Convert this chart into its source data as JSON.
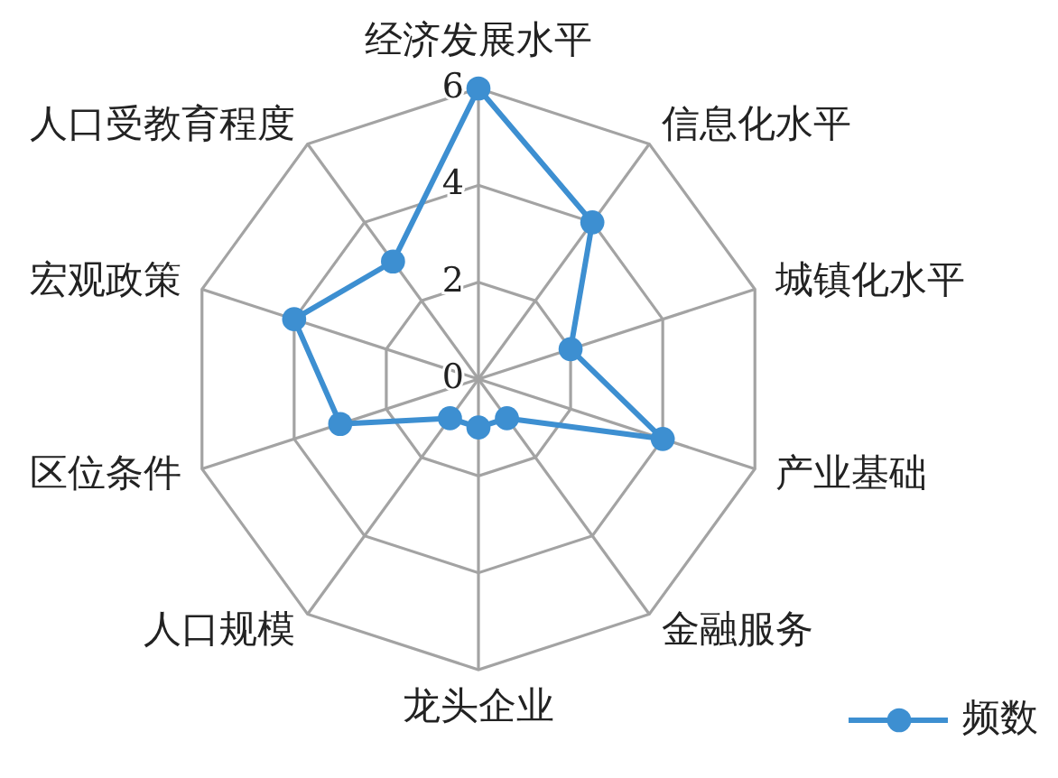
{
  "chart_data": {
    "type": "radar",
    "categories": [
      "经济发展水平",
      "信息化水平",
      "城镇化水平",
      "产业基础",
      "金融服务",
      "龙头企业",
      "人口规模",
      "区位条件",
      "宏观政策",
      "人口受教育程度"
    ],
    "series": [
      {
        "name": "频数",
        "color": "#3d8fd1",
        "values": [
          6,
          4,
          2,
          4,
          1,
          1,
          1,
          3,
          4,
          3
        ]
      }
    ],
    "ylim": [
      0,
      6
    ],
    "yticks": [
      0,
      2,
      4,
      6
    ],
    "grid": true,
    "marker": "circle",
    "legend": "bottom right"
  }
}
